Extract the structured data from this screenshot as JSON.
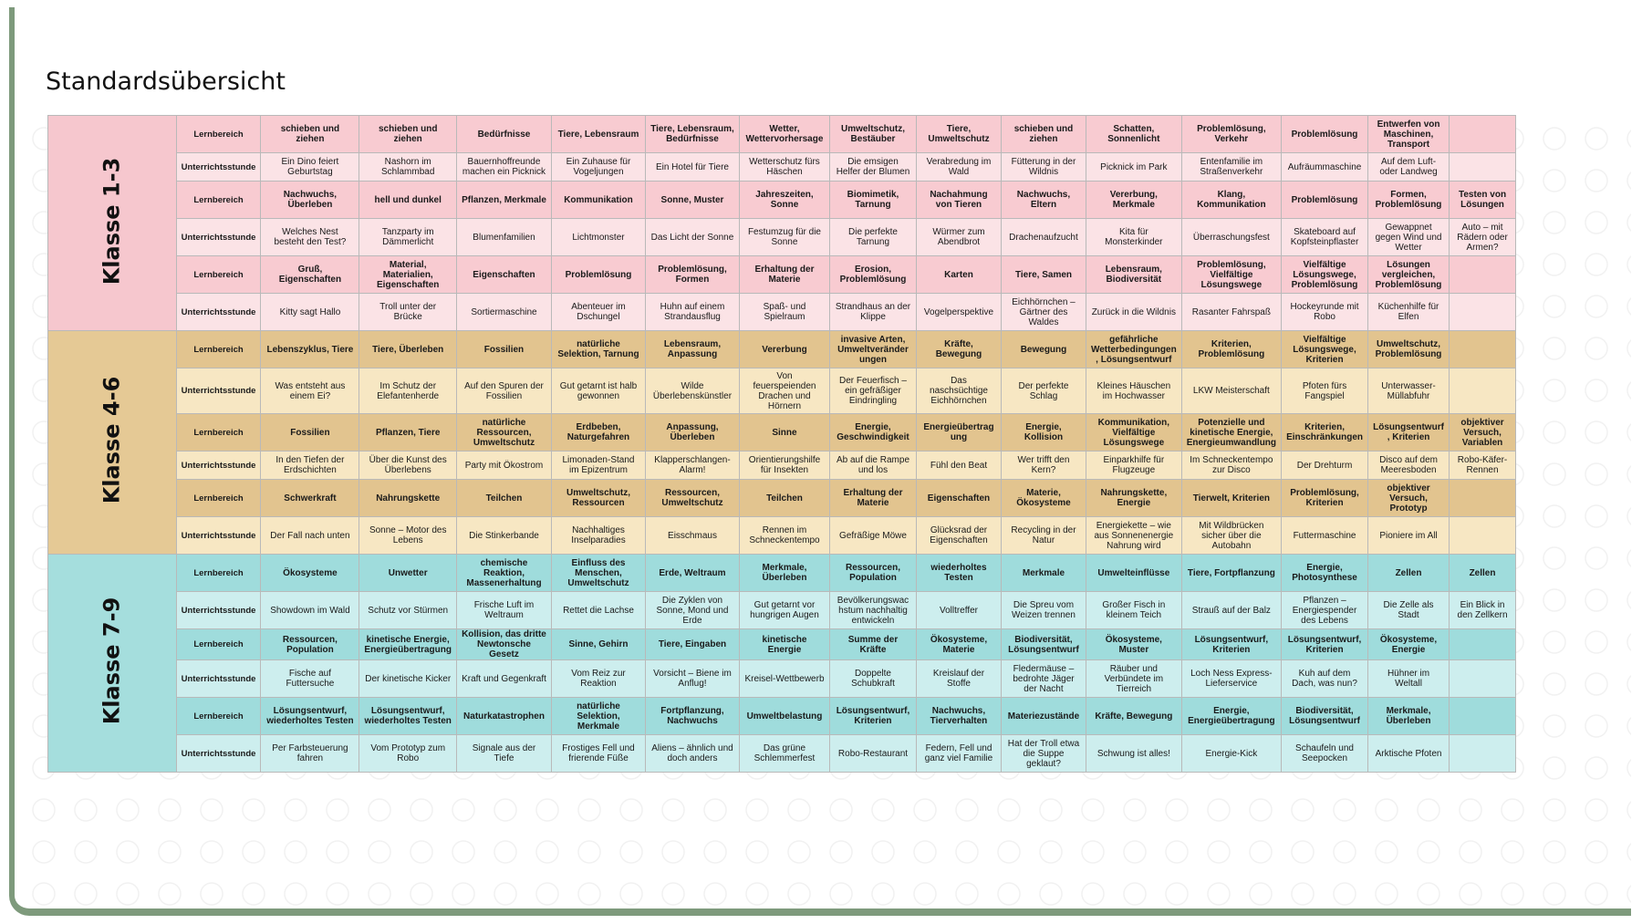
{
  "title": "Standardsübersicht",
  "colors": {
    "pink_header": "#f8cbd1",
    "pink_body": "#fbe3e6",
    "pink_group": "#f6c7ce",
    "tan_header": "#e2c48f",
    "tan_body": "#f7e7c3",
    "tan_group": "#e5c995",
    "teal_header": "#9fdcdc",
    "teal_body": "#cdeeee",
    "teal_group": "#a5dedd",
    "frame": "#7e9a7c"
  },
  "groups": [
    {
      "label": "Klasse 1-3",
      "theme": "pink",
      "rows": [
        {
          "label": "Lernbereich",
          "type": "lb",
          "cells": [
            "schieben und ziehen",
            "schieben und ziehen",
            "Bedürfnisse",
            "Tiere, Lebensraum",
            "Tiere, Lebensraum, Bedürfnisse",
            "Wetter, Wettervorhersage",
            "Umweltschutz, Bestäuber",
            "Tiere, Umweltschutz",
            "schieben und ziehen",
            "Schatten, Sonnenlicht",
            "Problemlösung, Verkehr",
            "Problemlösung",
            "Entwerfen von Maschinen, Transport",
            ""
          ]
        },
        {
          "label": "Unterrichtsstunde",
          "type": "us",
          "cells": [
            "Ein Dino feiert Geburtstag",
            "Nashorn im Schlammbad",
            "Bauernhoffreunde machen ein Picknick",
            "Ein Zuhause für Vogeljungen",
            "Ein Hotel für Tiere",
            "Wetterschutz fürs Häschen",
            "Die emsigen Helfer der Blumen",
            "Verabredung im Wald",
            "Fütterung in der Wildnis",
            "Picknick im Park",
            "Entenfamilie im Straßenverkehr",
            "Aufräummaschine",
            "Auf dem Luft- oder Landweg",
            ""
          ]
        },
        {
          "label": "Lernbereich",
          "type": "lb",
          "cells": [
            "Nachwuchs, Überleben",
            "hell und dunkel",
            "Pflanzen, Merkmale",
            "Kommunikation",
            "Sonne, Muster",
            "Jahreszeiten, Sonne",
            "Biomimetik, Tarnung",
            "Nachahmung von Tieren",
            "Nachwuchs, Eltern",
            "Vererbung, Merkmale",
            "Klang, Kommunikation",
            "Problemlösung",
            "Formen, Problemlösung",
            "Testen von Lösungen"
          ]
        },
        {
          "label": "Unterrichtsstunde",
          "type": "us",
          "cells": [
            "Welches Nest besteht den Test?",
            "Tanzparty im Dämmerlicht",
            "Blumenfamilien",
            "Lichtmonster",
            "Das Licht der Sonne",
            "Festumzug für die Sonne",
            "Die perfekte Tarnung",
            "Würmer zum Abendbrot",
            "Drachenaufzucht",
            "Kita für Monsterkinder",
            "Überraschungsfest",
            "Skateboard auf Kopfsteinpflaster",
            "Gewappnet gegen Wind und Wetter",
            "Auto – mit Rädern oder Armen?"
          ]
        },
        {
          "label": "Lernbereich",
          "type": "lb",
          "cells": [
            "Gruß, Eigenschaften",
            "Material, Materialien, Eigenschaften",
            "Eigenschaften",
            "Problemlösung",
            "Problemlösung, Formen",
            "Erhaltung der Materie",
            "Erosion, Problemlösung",
            "Karten",
            "Tiere, Samen",
            "Lebensraum, Biodiversität",
            "Problemlösung, Vielfältige Lösungswege",
            "Vielfältige Lösungswege, Problemlösung",
            "Lösungen vergleichen, Problemlösung",
            ""
          ]
        },
        {
          "label": "Unterrichtsstunde",
          "type": "us",
          "cells": [
            "Kitty sagt Hallo",
            "Troll unter der Brücke",
            "Sortiermaschine",
            "Abenteuer im Dschungel",
            "Huhn auf einem Strandausflug",
            "Spaß- und Spielraum",
            "Strandhaus an der Klippe",
            "Vogelperspektive",
            "Eichhörnchen – Gärtner des Waldes",
            "Zurück in die Wildnis",
            "Rasanter Fahrspaß",
            "Hockeyrunde mit Robo",
            "Küchenhilfe für Elfen",
            ""
          ]
        }
      ]
    },
    {
      "label": "Klasse 4-6",
      "theme": "tan",
      "rows": [
        {
          "label": "Lernbereich",
          "type": "lb",
          "cells": [
            "Lebenszyklus, Tiere",
            "Tiere, Überleben",
            "Fossilien",
            "natürliche Selektion, Tarnung",
            "Lebensraum, Anpassung",
            "Vererbung",
            "invasive Arten, Umweltveränder ungen",
            "Kräfte, Bewegung",
            "Bewegung",
            "gefährliche Wetterbedingungen , Lösungsentwurf",
            "Kriterien, Problemlösung",
            "Vielfältige Lösungswege, Kriterien",
            "Umweltschutz, Problemlösung",
            ""
          ]
        },
        {
          "label": "Unterrichtsstunde",
          "type": "us",
          "cells": [
            "Was entsteht aus einem Ei?",
            "Im Schutz der Elefantenherde",
            "Auf den Spuren der Fossilien",
            "Gut getarnt ist halb gewonnen",
            "Wilde Überlebenskünstler",
            "Von feuerspeienden Drachen und Hörnern",
            "Der Feuerfisch – ein gefräßiger Eindringling",
            "Das naschsüchtige Eichhörnchen",
            "Der perfekte Schlag",
            "Kleines Häuschen im Hochwasser",
            "LKW Meisterschaft",
            "Pfoten fürs Fangspiel",
            "Unterwasser-Müllabfuhr",
            ""
          ]
        },
        {
          "label": "Lernbereich",
          "type": "lb",
          "cells": [
            "Fossilien",
            "Pflanzen, Tiere",
            "natürliche Ressourcen, Umweltschutz",
            "Erdbeben, Naturgefahren",
            "Anpassung, Überleben",
            "Sinne",
            "Energie, Geschwindigkeit",
            "Energieübertrag ung",
            "Energie, Kollision",
            "Kommunikation, Vielfältige Lösungswege",
            "Potenzielle und kinetische Energie, Energieumwandlung",
            "Kriterien, Einschränkungen",
            "Lösungsentwurf , Kriterien",
            "objektiver Versuch, Variablen"
          ]
        },
        {
          "label": "Unterrichtsstunde",
          "type": "us",
          "cells": [
            "In den Tiefen der Erdschichten",
            "Über die Kunst des Überlebens",
            "Party mit Ökostrom",
            "Limonaden-Stand im Epizentrum",
            "Klapperschlangen-Alarm!",
            "Orientierungshilfe für Insekten",
            "Ab auf die Rampe und los",
            "Fühl den Beat",
            "Wer trifft den Kern?",
            "Einparkhilfe für Flugzeuge",
            "Im Schneckentempo zur Disco",
            "Der Drehturm",
            "Disco auf dem Meeresboden",
            "Robo-Käfer-Rennen"
          ]
        },
        {
          "label": "Lernbereich",
          "type": "lb",
          "cells": [
            "Schwerkraft",
            "Nahrungskette",
            "Teilchen",
            "Umweltschutz, Ressourcen",
            "Ressourcen, Umweltschutz",
            "Teilchen",
            "Erhaltung der Materie",
            "Eigenschaften",
            "Materie, Ökosysteme",
            "Nahrungskette, Energie",
            "Tierwelt, Kriterien",
            "Problemlösung, Kriterien",
            "objektiver Versuch, Prototyp",
            ""
          ]
        },
        {
          "label": "Unterrichtsstunde",
          "type": "us",
          "cells": [
            "Der Fall nach unten",
            "Sonne – Motor des Lebens",
            "Die Stinkerbande",
            "Nachhaltiges Inselparadies",
            "Eisschmaus",
            "Rennen im Schneckentempo",
            "Gefräßige Möwe",
            "Glücksrad der Eigenschaften",
            "Recycling in der Natur",
            "Energiekette – wie aus Sonnenenergie Nahrung wird",
            "Mit Wildbrücken sicher über die Autobahn",
            "Futtermaschine",
            "Pioniere im All",
            ""
          ]
        }
      ]
    },
    {
      "label": "Klasse 7-9",
      "theme": "teal",
      "rows": [
        {
          "label": "Lernbereich",
          "type": "lb",
          "cells": [
            "Ökosysteme",
            "Unwetter",
            "chemische Reaktion, Massenerhaltung",
            "Einfluss des Menschen, Umweltschutz",
            "Erde, Weltraum",
            "Merkmale, Überleben",
            "Ressourcen, Population",
            "wiederholtes Testen",
            "Merkmale",
            "Umwelteinflüsse",
            "Tiere, Fortpflanzung",
            "Energie, Photosynthese",
            "Zellen",
            "Zellen"
          ]
        },
        {
          "label": "Unterrichtsstunde",
          "type": "us",
          "cells": [
            "Showdown im Wald",
            "Schutz vor Stürmen",
            "Frische Luft im Weltraum",
            "Rettet die Lachse",
            "Die Zyklen von Sonne, Mond und Erde",
            "Gut getarnt vor hungrigen Augen",
            "Bevölkerungswac hstum nachhaltig entwickeln",
            "Volltreffer",
            "Die Spreu vom Weizen trennen",
            "Großer Fisch in kleinem Teich",
            "Strauß auf der Balz",
            "Pflanzen – Energiespender des Lebens",
            "Die Zelle als Stadt",
            "Ein Blick in den Zellkern"
          ]
        },
        {
          "label": "Lernbereich",
          "type": "lb",
          "cells": [
            "Ressourcen, Population",
            "kinetische Energie, Energieübertragung",
            "Kollision, das dritte Newtonsche Gesetz",
            "Sinne, Gehirn",
            "Tiere, Eingaben",
            "kinetische Energie",
            "Summe der Kräfte",
            "Ökosysteme, Materie",
            "Biodiversität, Lösungsentwurf",
            "Ökosysteme, Muster",
            "Lösungsentwurf, Kriterien",
            "Lösungsentwurf, Kriterien",
            "Ökosysteme, Energie",
            ""
          ]
        },
        {
          "label": "Unterrichtsstunde",
          "type": "us",
          "cells": [
            "Fische auf Futtersuche",
            "Der kinetische Kicker",
            "Kraft und Gegenkraft",
            "Vom Reiz zur Reaktion",
            "Vorsicht – Biene im Anflug!",
            "Kreisel-Wettbewerb",
            "Doppelte Schubkraft",
            "Kreislauf der Stoffe",
            "Fledermäuse – bedrohte Jäger der Nacht",
            "Räuber und Verbündete im Tierreich",
            "Loch Ness Express-Lieferservice",
            "Kuh auf dem Dach, was nun?",
            "Hühner im Weltall",
            ""
          ]
        },
        {
          "label": "Lernbereich",
          "type": "lb",
          "cells": [
            "Lösungsentwurf, wiederholtes Testen",
            "Lösungsentwurf, wiederholtes Testen",
            "Naturkatastrophen",
            "natürliche Selektion, Merkmale",
            "Fortpflanzung, Nachwuchs",
            "Umweltbelastung",
            "Lösungsentwurf, Kriterien",
            "Nachwuchs, Tierverhalten",
            "Materiezustände",
            "Kräfte, Bewegung",
            "Energie, Energieübertragung",
            "Biodiversität, Lösungsentwurf",
            "Merkmale, Überleben",
            ""
          ]
        },
        {
          "label": "Unterrichtsstunde",
          "type": "us",
          "cells": [
            "Per Farbsteuerung fahren",
            "Vom Prototyp zum Robo",
            "Signale aus der Tiefe",
            "Frostiges Fell und frierende Füße",
            "Aliens – ähnlich und doch anders",
            "Das grüne Schlemmerfest",
            "Robo-Restaurant",
            "Federn, Fell und ganz viel Familie",
            "Hat der Troll etwa die Suppe geklaut?",
            "Schwung ist alles!",
            "Energie-Kick",
            "Schaufeln und Seepocken",
            "Arktische Pfoten",
            ""
          ]
        }
      ]
    }
  ]
}
